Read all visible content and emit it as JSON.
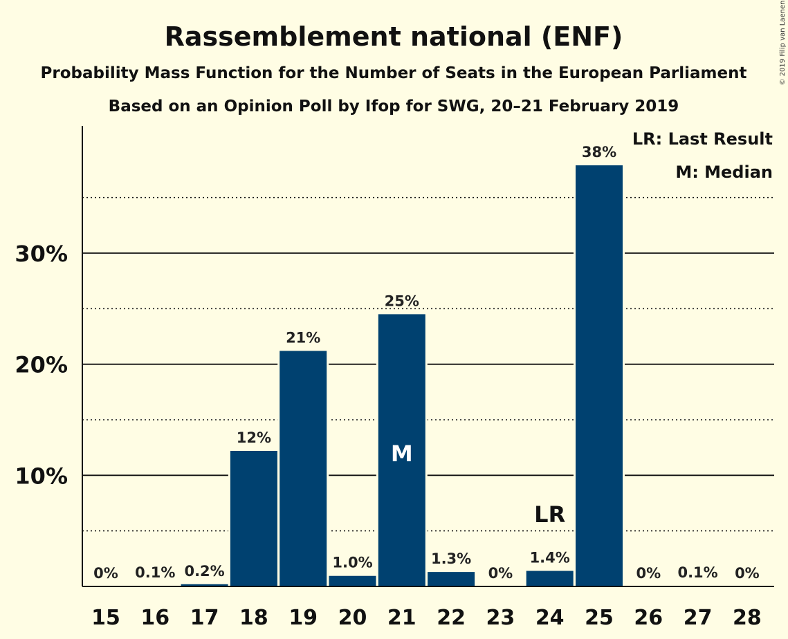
{
  "chart_data": {
    "type": "bar",
    "title": "Rassemblement national (ENF)",
    "subtitle": "Probability Mass Function for the Number of Seats in the European Parliament",
    "subtitle2": "Based on an Opinion Poll by Ifop for SWG, 20–21 February 2019",
    "copyright": "© 2019 Filip van Laenen",
    "categories": [
      "15",
      "16",
      "17",
      "18",
      "19",
      "20",
      "21",
      "22",
      "23",
      "24",
      "25",
      "26",
      "27",
      "28"
    ],
    "values": [
      0,
      0.05,
      0.2,
      12.2,
      21.2,
      0.95,
      24.5,
      1.3,
      0,
      1.4,
      37.9,
      0,
      0.05,
      0
    ],
    "data_labels": [
      "0%",
      "0.1%",
      "0.2%",
      "12%",
      "21%",
      "1.0%",
      "25%",
      "1.3%",
      "0%",
      "1.4%",
      "38%",
      "0%",
      "0.1%",
      "0%"
    ],
    "ylim": [
      0,
      41
    ],
    "yticks": [
      {
        "value": 10,
        "label": "10%"
      },
      {
        "value": 20,
        "label": "20%"
      },
      {
        "value": 30,
        "label": "30%"
      }
    ],
    "minor_gridlines": [
      5,
      15,
      25,
      35
    ],
    "median": {
      "category": "21",
      "label": "M"
    },
    "last_result": {
      "category": "24",
      "label": "LR"
    },
    "legend": [
      "LR: Last Result",
      "M: Median"
    ],
    "legend_position": "top-right",
    "colors": {
      "bar": "#004170",
      "background": "#fffde4",
      "text": "#111111",
      "marker_inside": "#ffffff"
    }
  }
}
